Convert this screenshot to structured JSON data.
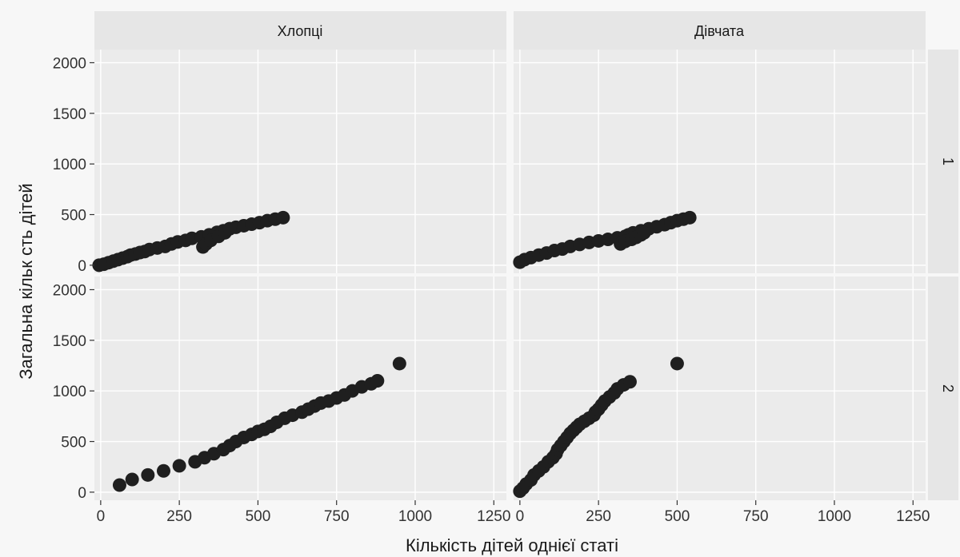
{
  "chart_data": {
    "type": "scatter",
    "xlabel": "Кількість дітей однієї статі",
    "ylabel": "Загальна кільк сть дітей",
    "col_strips": [
      "Хлопці",
      "Дівчата"
    ],
    "row_strips": [
      "1",
      "2"
    ],
    "xlim": [
      -20,
      1290
    ],
    "ylim": [
      -80,
      2130
    ],
    "x_ticks": [
      0,
      250,
      500,
      750,
      1000,
      1250
    ],
    "y_ticks": [
      0,
      500,
      1000,
      1500,
      2000
    ],
    "grid": true,
    "point_color": "#1f1f1f",
    "panels": [
      {
        "col": "Хлопці",
        "row": "1",
        "points": [
          [
            -5,
            0
          ],
          [
            10,
            10
          ],
          [
            25,
            25
          ],
          [
            40,
            40
          ],
          [
            55,
            55
          ],
          [
            70,
            70
          ],
          [
            85,
            85
          ],
          [
            95,
            100
          ],
          [
            110,
            110
          ],
          [
            125,
            125
          ],
          [
            140,
            135
          ],
          [
            155,
            155
          ],
          [
            180,
            170
          ],
          [
            205,
            185
          ],
          [
            225,
            210
          ],
          [
            245,
            230
          ],
          [
            270,
            245
          ],
          [
            290,
            265
          ],
          [
            320,
            280
          ],
          [
            345,
            300
          ],
          [
            370,
            325
          ],
          [
            390,
            340
          ],
          [
            410,
            360
          ],
          [
            430,
            375
          ],
          [
            455,
            390
          ],
          [
            480,
            405
          ],
          [
            505,
            420
          ],
          [
            530,
            440
          ],
          [
            555,
            455
          ],
          [
            580,
            470
          ],
          [
            325,
            180
          ],
          [
            335,
            210
          ],
          [
            350,
            245
          ],
          [
            375,
            285
          ],
          [
            395,
            320
          ],
          [
            410,
            360
          ]
        ]
      },
      {
        "col": "Дівчата",
        "row": "1",
        "points": [
          [
            0,
            30
          ],
          [
            15,
            55
          ],
          [
            35,
            75
          ],
          [
            60,
            100
          ],
          [
            85,
            120
          ],
          [
            110,
            145
          ],
          [
            135,
            160
          ],
          [
            160,
            185
          ],
          [
            190,
            205
          ],
          [
            220,
            225
          ],
          [
            250,
            240
          ],
          [
            280,
            255
          ],
          [
            310,
            270
          ],
          [
            335,
            285
          ],
          [
            345,
            300
          ],
          [
            360,
            320
          ],
          [
            385,
            340
          ],
          [
            410,
            360
          ],
          [
            435,
            380
          ],
          [
            460,
            400
          ],
          [
            480,
            420
          ],
          [
            500,
            440
          ],
          [
            520,
            455
          ],
          [
            540,
            470
          ],
          [
            320,
            210
          ],
          [
            335,
            235
          ],
          [
            355,
            255
          ],
          [
            370,
            275
          ],
          [
            385,
            300
          ],
          [
            395,
            320
          ]
        ]
      },
      {
        "col": "Хлопці",
        "row": "2",
        "points": [
          [
            60,
            70
          ],
          [
            100,
            125
          ],
          [
            150,
            170
          ],
          [
            200,
            210
          ],
          [
            250,
            260
          ],
          [
            300,
            300
          ],
          [
            330,
            340
          ],
          [
            360,
            380
          ],
          [
            390,
            420
          ],
          [
            410,
            460
          ],
          [
            430,
            500
          ],
          [
            455,
            540
          ],
          [
            480,
            570
          ],
          [
            500,
            600
          ],
          [
            520,
            620
          ],
          [
            540,
            650
          ],
          [
            560,
            690
          ],
          [
            585,
            730
          ],
          [
            610,
            760
          ],
          [
            640,
            790
          ],
          [
            660,
            820
          ],
          [
            680,
            850
          ],
          [
            700,
            880
          ],
          [
            725,
            900
          ],
          [
            750,
            930
          ],
          [
            775,
            960
          ],
          [
            800,
            1000
          ],
          [
            830,
            1040
          ],
          [
            860,
            1070
          ],
          [
            880,
            1100
          ],
          [
            950,
            1270
          ]
        ]
      },
      {
        "col": "Дівчата",
        "row": "2",
        "points": [
          [
            0,
            10
          ],
          [
            10,
            40
          ],
          [
            20,
            80
          ],
          [
            35,
            120
          ],
          [
            45,
            170
          ],
          [
            60,
            210
          ],
          [
            75,
            250
          ],
          [
            90,
            300
          ],
          [
            105,
            340
          ],
          [
            115,
            380
          ],
          [
            120,
            420
          ],
          [
            130,
            460
          ],
          [
            140,
            500
          ],
          [
            150,
            540
          ],
          [
            160,
            580
          ],
          [
            170,
            610
          ],
          [
            180,
            640
          ],
          [
            190,
            670
          ],
          [
            205,
            700
          ],
          [
            220,
            730
          ],
          [
            235,
            760
          ],
          [
            240,
            790
          ],
          [
            250,
            820
          ],
          [
            260,
            860
          ],
          [
            270,
            900
          ],
          [
            285,
            940
          ],
          [
            300,
            980
          ],
          [
            310,
            1020
          ],
          [
            330,
            1060
          ],
          [
            350,
            1090
          ],
          [
            500,
            1270
          ]
        ]
      }
    ]
  }
}
